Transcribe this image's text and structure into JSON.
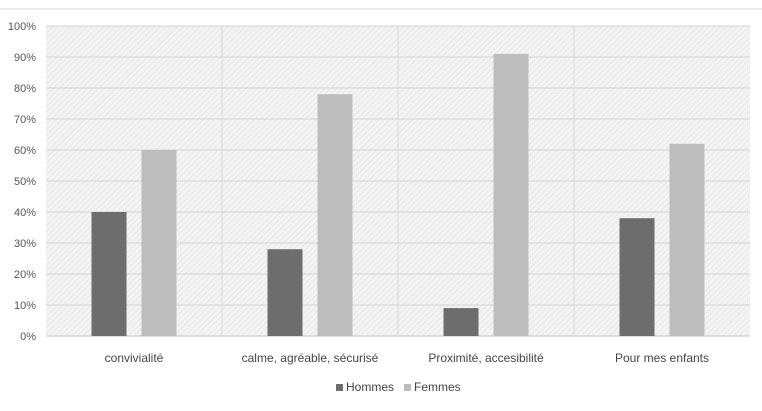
{
  "chart_data": {
    "type": "bar",
    "categories": [
      "convivialité",
      "calme, agréable, sécurisé",
      "Proximité, accesibilité",
      "Pour mes enfants"
    ],
    "series": [
      {
        "name": "Hommes",
        "values": [
          40,
          28,
          9,
          38
        ],
        "color": "#6d6d6d"
      },
      {
        "name": "Femmes",
        "values": [
          60,
          78,
          91,
          62
        ],
        "color": "#bdbdbd"
      }
    ],
    "y_ticks": [
      "0%",
      "10%",
      "20%",
      "30%",
      "40%",
      "50%",
      "60%",
      "70%",
      "80%",
      "90%",
      "100%"
    ],
    "ylim": [
      0,
      100
    ],
    "y_unit": "%",
    "title": "",
    "xlabel": "",
    "ylabel": "",
    "grid": true,
    "legend_position": "bottom",
    "plot_background": "#ebebeb"
  }
}
